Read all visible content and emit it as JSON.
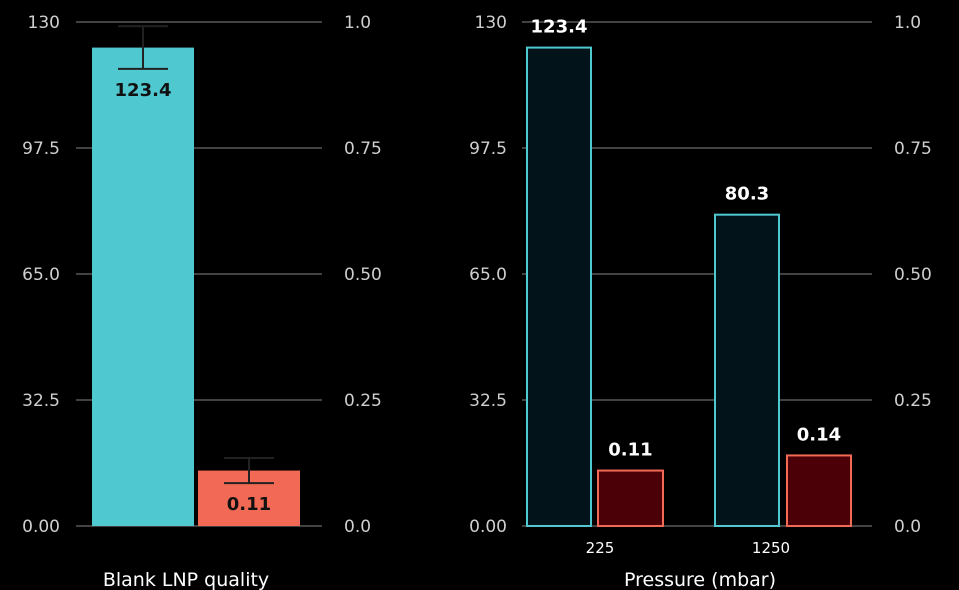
{
  "colors": {
    "cyan": "#4fc8d0",
    "salmon": "#f26a55",
    "dark_teal": "#02141a",
    "dark_red": "#4a0006",
    "grid": "#6a6a6a",
    "errorbar": "#222222"
  },
  "chart_data": [
    {
      "type": "bar",
      "xlabel": "Blank LNP quality",
      "categories": [
        ""
      ],
      "y_left_ticks": [
        "0.00",
        "32.5",
        "65.0",
        "97.5",
        "130"
      ],
      "y_right_ticks": [
        "0.0",
        "0.25",
        "0.50",
        "0.75",
        "1.0"
      ],
      "ylim_left": [
        0,
        130
      ],
      "ylim_right": [
        0,
        1.0
      ],
      "grid": true,
      "series": [
        {
          "axis": "left",
          "values": [
            123.4
          ],
          "labels": [
            "123.4"
          ],
          "error": [
            5.5
          ],
          "color": "#4fc8d0"
        },
        {
          "axis": "right",
          "values": [
            0.11
          ],
          "labels": [
            "0.11"
          ],
          "error": [
            0.025
          ],
          "color": "#f26a55"
        }
      ]
    },
    {
      "type": "bar",
      "xlabel": "Pressure (mbar)",
      "categories": [
        "225",
        "1250"
      ],
      "y_left_ticks": [
        "0.00",
        "32.5",
        "65.0",
        "97.5",
        "130"
      ],
      "y_right_ticks": [
        "0.0",
        "0.25",
        "0.50",
        "0.75",
        "1.0"
      ],
      "ylim_left": [
        0,
        130
      ],
      "ylim_right": [
        0,
        1.0
      ],
      "grid": true,
      "series": [
        {
          "axis": "left",
          "values": [
            123.4,
            80.3
          ],
          "labels": [
            "123.4",
            "80.3"
          ],
          "fill": "#02141a",
          "stroke": "#4fc8d0"
        },
        {
          "axis": "right",
          "values": [
            0.11,
            0.14
          ],
          "labels": [
            "0.11",
            "0.14"
          ],
          "fill": "#4a0006",
          "stroke": "#f26a55"
        }
      ]
    }
  ]
}
